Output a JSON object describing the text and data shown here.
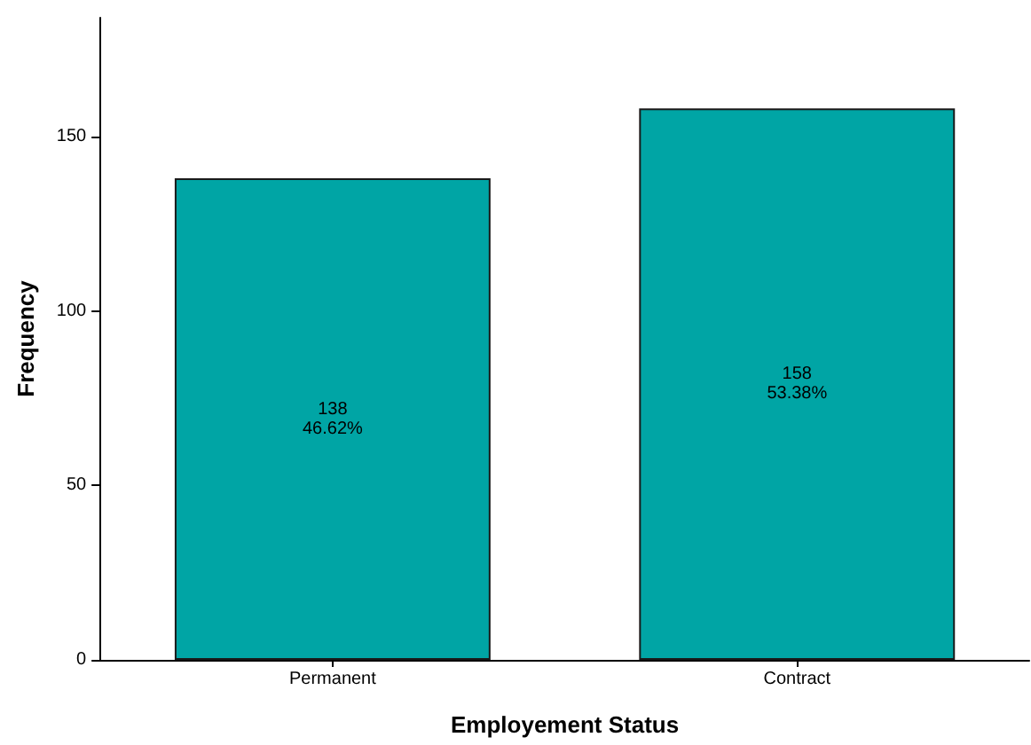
{
  "chart_data": {
    "type": "bar",
    "xlabel": "Employement Status",
    "ylabel": "Frequency",
    "categories": [
      "Permanent",
      "Contract"
    ],
    "values": [
      138,
      158
    ],
    "color": "#00a5a5",
    "value_labels": [
      "138\n46.62%",
      "158\n53.38%"
    ],
    "ylim": [
      0,
      184
    ],
    "yticks": [
      0,
      50,
      100,
      150
    ]
  }
}
